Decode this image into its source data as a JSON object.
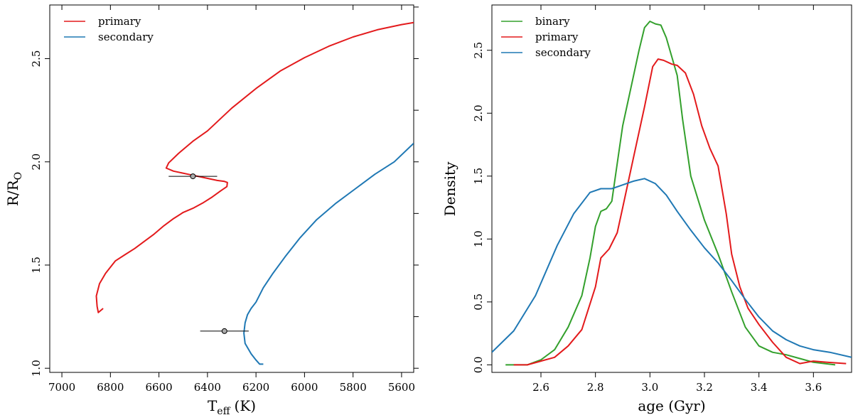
{
  "colors": {
    "primary": "#e31a1c",
    "secondary": "#1f78b4",
    "binary": "#33a02c",
    "errbar": "#000000"
  },
  "chart_data": [
    {
      "type": "line",
      "panel": "left",
      "xlabel_main": "T",
      "xlabel_sub": "eff",
      "xlabel_unit": "(K)",
      "ylabel_main": "R/R",
      "ylabel_sub": "O",
      "xlim": [
        7050,
        5550
      ],
      "ylim": [
        0.98,
        2.76
      ],
      "xticks": [
        7000,
        6800,
        6600,
        6400,
        6200,
        6000,
        5800,
        5600
      ],
      "xtick_labels": [
        "7000",
        "6800",
        "6600",
        "6400",
        "6200",
        "6000",
        "5800",
        "5600"
      ],
      "yticks": [
        1.0,
        1.5,
        2.0,
        2.5
      ],
      "ytick_labels": [
        "1.0",
        "1.5",
        "2.0",
        "2.5"
      ],
      "legend": {
        "position": "top-left",
        "entries": [
          {
            "label": "primary",
            "color": "#e31a1c"
          },
          {
            "label": "secondary",
            "color": "#1f78b4"
          }
        ]
      },
      "series": [
        {
          "name": "primary",
          "color": "#e31a1c",
          "x": [
            6830,
            6850,
            6855,
            6858,
            6845,
            6820,
            6780,
            6740,
            6700,
            6660,
            6620,
            6580,
            6540,
            6500,
            6460,
            6420,
            6380,
            6345,
            6320,
            6318,
            6330,
            6360,
            6420,
            6480,
            6540,
            6570,
            6560,
            6520,
            6460,
            6400,
            6300,
            6200,
            6100,
            6000,
            5900,
            5800,
            5700,
            5600,
            5550
          ],
          "y": [
            1.29,
            1.27,
            1.3,
            1.35,
            1.41,
            1.46,
            1.52,
            1.55,
            1.58,
            1.615,
            1.65,
            1.69,
            1.725,
            1.755,
            1.775,
            1.8,
            1.83,
            1.86,
            1.88,
            1.9,
            1.905,
            1.91,
            1.925,
            1.94,
            1.955,
            1.97,
            1.995,
            2.04,
            2.1,
            2.15,
            2.26,
            2.355,
            2.44,
            2.505,
            2.56,
            2.605,
            2.64,
            2.665,
            2.675
          ]
        },
        {
          "name": "secondary",
          "color": "#1f78b4",
          "x": [
            6170,
            6185,
            6200,
            6220,
            6245,
            6250,
            6245,
            6235,
            6220,
            6200,
            6170,
            6130,
            6080,
            6020,
            5950,
            5870,
            5790,
            5710,
            5630,
            5550
          ],
          "y": [
            1.02,
            1.02,
            1.04,
            1.07,
            1.12,
            1.17,
            1.22,
            1.26,
            1.29,
            1.32,
            1.39,
            1.46,
            1.54,
            1.63,
            1.72,
            1.8,
            1.87,
            1.94,
            2.0,
            2.09
          ]
        }
      ],
      "points": [
        {
          "name": "primary-obs",
          "x": 6460,
          "y": 1.93,
          "xerr": 100
        },
        {
          "name": "secondary-obs",
          "x": 6330,
          "y": 1.18,
          "xerr": 100
        }
      ]
    },
    {
      "type": "line",
      "panel": "right",
      "xlabel": "age (Gyr)",
      "ylabel": "Density",
      "xlim": [
        2.42,
        3.74
      ],
      "ylim": [
        -0.06,
        2.86
      ],
      "xticks": [
        2.6,
        2.8,
        3.0,
        3.2,
        3.4,
        3.6
      ],
      "xtick_labels": [
        "2.6",
        "2.8",
        "3.0",
        "3.2",
        "3.4",
        "3.6"
      ],
      "yticks": [
        0.0,
        0.5,
        1.0,
        1.5,
        2.0,
        2.5
      ],
      "ytick_labels": [
        "0.0",
        "0.5",
        "1.0",
        "1.5",
        "2.0",
        "2.5"
      ],
      "legend": {
        "position": "top-left",
        "entries": [
          {
            "label": "binary",
            "color": "#33a02c"
          },
          {
            "label": "primary",
            "color": "#e31a1c"
          },
          {
            "label": "secondary",
            "color": "#1f78b4"
          }
        ]
      },
      "series": [
        {
          "name": "binary",
          "color": "#33a02c",
          "x": [
            2.47,
            2.55,
            2.6,
            2.65,
            2.7,
            2.75,
            2.78,
            2.8,
            2.82,
            2.84,
            2.86,
            2.88,
            2.9,
            2.93,
            2.96,
            2.98,
            3.0,
            3.02,
            3.04,
            3.06,
            3.08,
            3.1,
            3.12,
            3.15,
            3.2,
            3.25,
            3.3,
            3.35,
            3.4,
            3.45,
            3.5,
            3.55,
            3.6,
            3.68
          ],
          "y": [
            0.0,
            0.0,
            0.04,
            0.12,
            0.3,
            0.55,
            0.85,
            1.1,
            1.22,
            1.24,
            1.3,
            1.6,
            1.9,
            2.2,
            2.5,
            2.68,
            2.73,
            2.71,
            2.7,
            2.6,
            2.45,
            2.3,
            1.95,
            1.5,
            1.15,
            0.88,
            0.58,
            0.3,
            0.15,
            0.1,
            0.08,
            0.05,
            0.02,
            0.0
          ]
        },
        {
          "name": "primary",
          "color": "#e31a1c",
          "x": [
            2.5,
            2.55,
            2.6,
            2.65,
            2.7,
            2.75,
            2.8,
            2.82,
            2.85,
            2.88,
            2.9,
            2.94,
            2.98,
            3.01,
            3.03,
            3.05,
            3.08,
            3.1,
            3.13,
            3.16,
            3.19,
            3.22,
            3.25,
            3.28,
            3.3,
            3.33,
            3.36,
            3.4,
            3.45,
            3.5,
            3.55,
            3.6,
            3.65,
            3.72
          ],
          "y": [
            0.0,
            0.0,
            0.03,
            0.06,
            0.15,
            0.28,
            0.62,
            0.85,
            0.92,
            1.05,
            1.25,
            1.65,
            2.05,
            2.37,
            2.43,
            2.42,
            2.39,
            2.38,
            2.32,
            2.15,
            1.9,
            1.72,
            1.58,
            1.2,
            0.88,
            0.62,
            0.45,
            0.32,
            0.18,
            0.06,
            0.01,
            0.03,
            0.02,
            0.01
          ]
        },
        {
          "name": "secondary",
          "color": "#1f78b4",
          "x": [
            2.42,
            2.5,
            2.58,
            2.66,
            2.72,
            2.78,
            2.82,
            2.86,
            2.9,
            2.94,
            2.98,
            3.02,
            3.06,
            3.1,
            3.15,
            3.2,
            3.25,
            3.3,
            3.35,
            3.4,
            3.45,
            3.5,
            3.55,
            3.6,
            3.66,
            3.74
          ],
          "y": [
            0.1,
            0.27,
            0.55,
            0.95,
            1.2,
            1.37,
            1.4,
            1.4,
            1.43,
            1.46,
            1.48,
            1.44,
            1.35,
            1.22,
            1.07,
            0.93,
            0.81,
            0.67,
            0.52,
            0.38,
            0.27,
            0.2,
            0.15,
            0.12,
            0.1,
            0.06
          ]
        }
      ]
    }
  ]
}
